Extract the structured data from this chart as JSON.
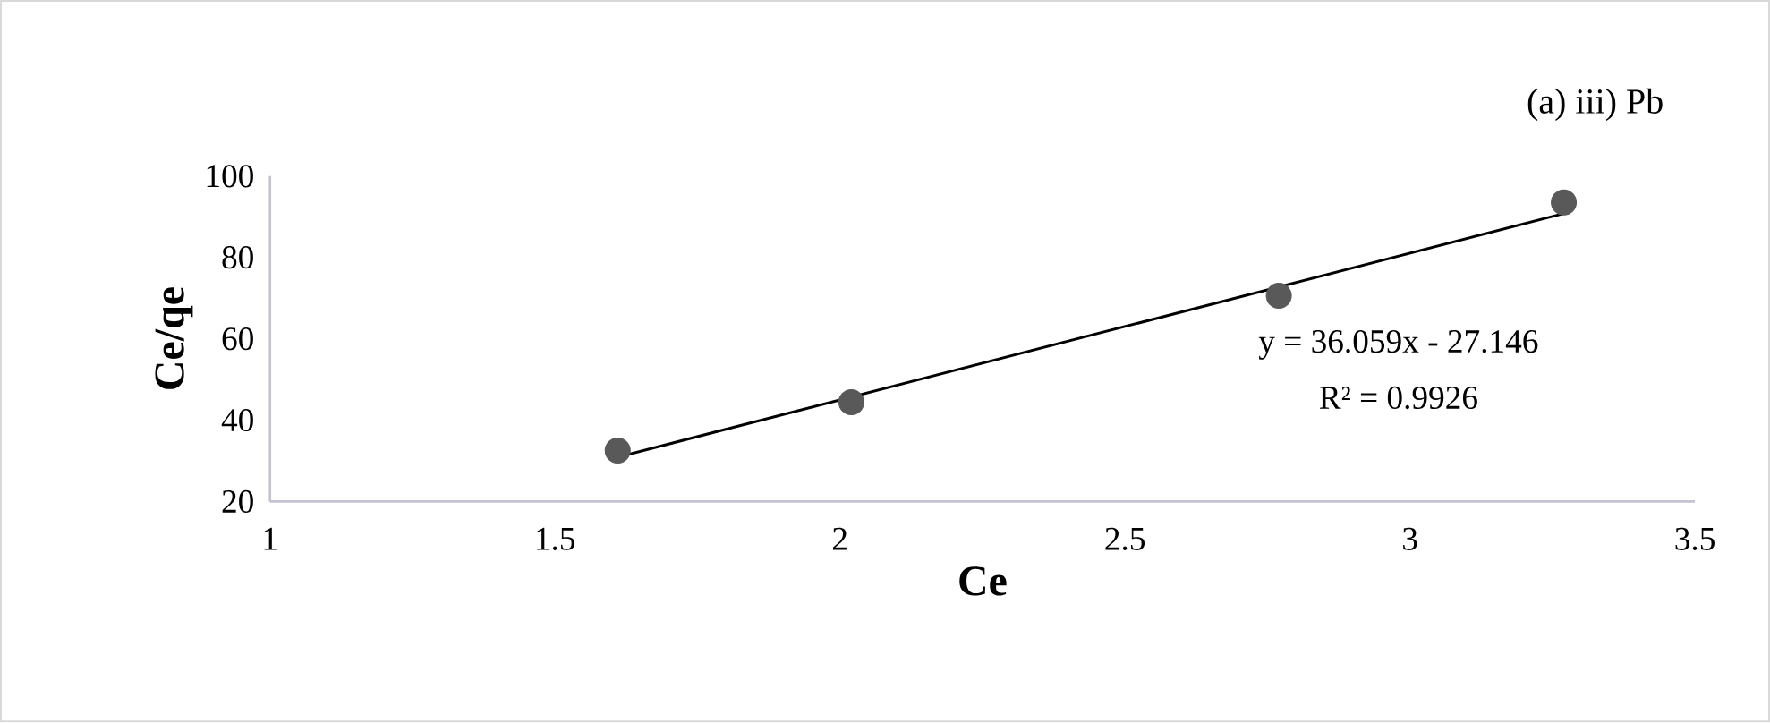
{
  "chart_data": {
    "type": "scatter",
    "title": "(a) iii) Pb",
    "xlabel": "Ce",
    "ylabel": "Ce/qe",
    "xlim": [
      1,
      3.5
    ],
    "xticks": [
      1,
      1.5,
      2,
      2.5,
      3,
      3.5
    ],
    "ylim": [
      20,
      100
    ],
    "yticks": [
      20,
      40,
      60,
      80,
      100
    ],
    "series": [
      {
        "color": "#595959",
        "marker": "circle",
        "x": [
          1.61,
          2.02,
          2.77,
          3.27
        ],
        "values": [
          32.5,
          44.4,
          70.6,
          93.5
        ]
      },
      {
        "type": "line",
        "color": "#000000",
        "marker": "none",
        "x": [
          1.61,
          3.27
        ],
        "values": [
          30.9,
          90.8
        ]
      }
    ],
    "annotations": [
      "y = 36.059x - 27.146",
      "R² = 0.9926"
    ]
  }
}
